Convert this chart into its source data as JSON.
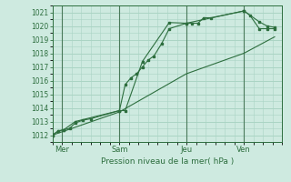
{
  "title": "Pression niveau de la mer( hPa )",
  "bg_color": "#ceeae0",
  "grid_color": "#aad4c4",
  "line_color": "#2d6e3e",
  "vline_color": "#4a7a5a",
  "ylim": [
    1011.5,
    1021.5
  ],
  "yticks": [
    1012,
    1013,
    1014,
    1015,
    1016,
    1017,
    1018,
    1019,
    1020,
    1021
  ],
  "xlim": [
    0,
    12.0
  ],
  "day_labels": [
    "Mer",
    "Sam",
    "Jeu",
    "Ven"
  ],
  "day_positions": [
    0.5,
    3.5,
    7.0,
    10.0
  ],
  "vline_positions": [
    0.5,
    3.5,
    7.0,
    10.0
  ],
  "series1_x": [
    0.0,
    0.3,
    0.6,
    0.9,
    1.2,
    1.6,
    2.0,
    3.5,
    3.8,
    4.1,
    4.4,
    4.7,
    5.0,
    5.3,
    5.7,
    6.1,
    7.0,
    7.3,
    7.6,
    7.9,
    8.3,
    10.0,
    10.3,
    10.8,
    11.2,
    11.6
  ],
  "series1_y": [
    1012.0,
    1012.3,
    1012.4,
    1012.5,
    1012.9,
    1013.1,
    1013.2,
    1013.8,
    1015.7,
    1016.2,
    1016.5,
    1017.0,
    1017.5,
    1017.8,
    1018.7,
    1019.8,
    1020.2,
    1020.2,
    1020.2,
    1020.6,
    1020.6,
    1021.1,
    1020.8,
    1019.8,
    1019.8,
    1019.8
  ],
  "series2_x": [
    0.0,
    0.3,
    0.6,
    1.2,
    3.5,
    3.8,
    4.7,
    6.1,
    7.0,
    10.0,
    10.8,
    11.2,
    11.6
  ],
  "series2_y": [
    1012.0,
    1012.3,
    1012.4,
    1013.0,
    1013.8,
    1013.8,
    1017.4,
    1020.25,
    1020.2,
    1021.1,
    1020.3,
    1020.0,
    1019.9
  ],
  "series3_x": [
    0.0,
    3.5,
    7.0,
    10.0,
    11.6
  ],
  "series3_y": [
    1012.0,
    1013.7,
    1016.5,
    1018.0,
    1019.2
  ]
}
